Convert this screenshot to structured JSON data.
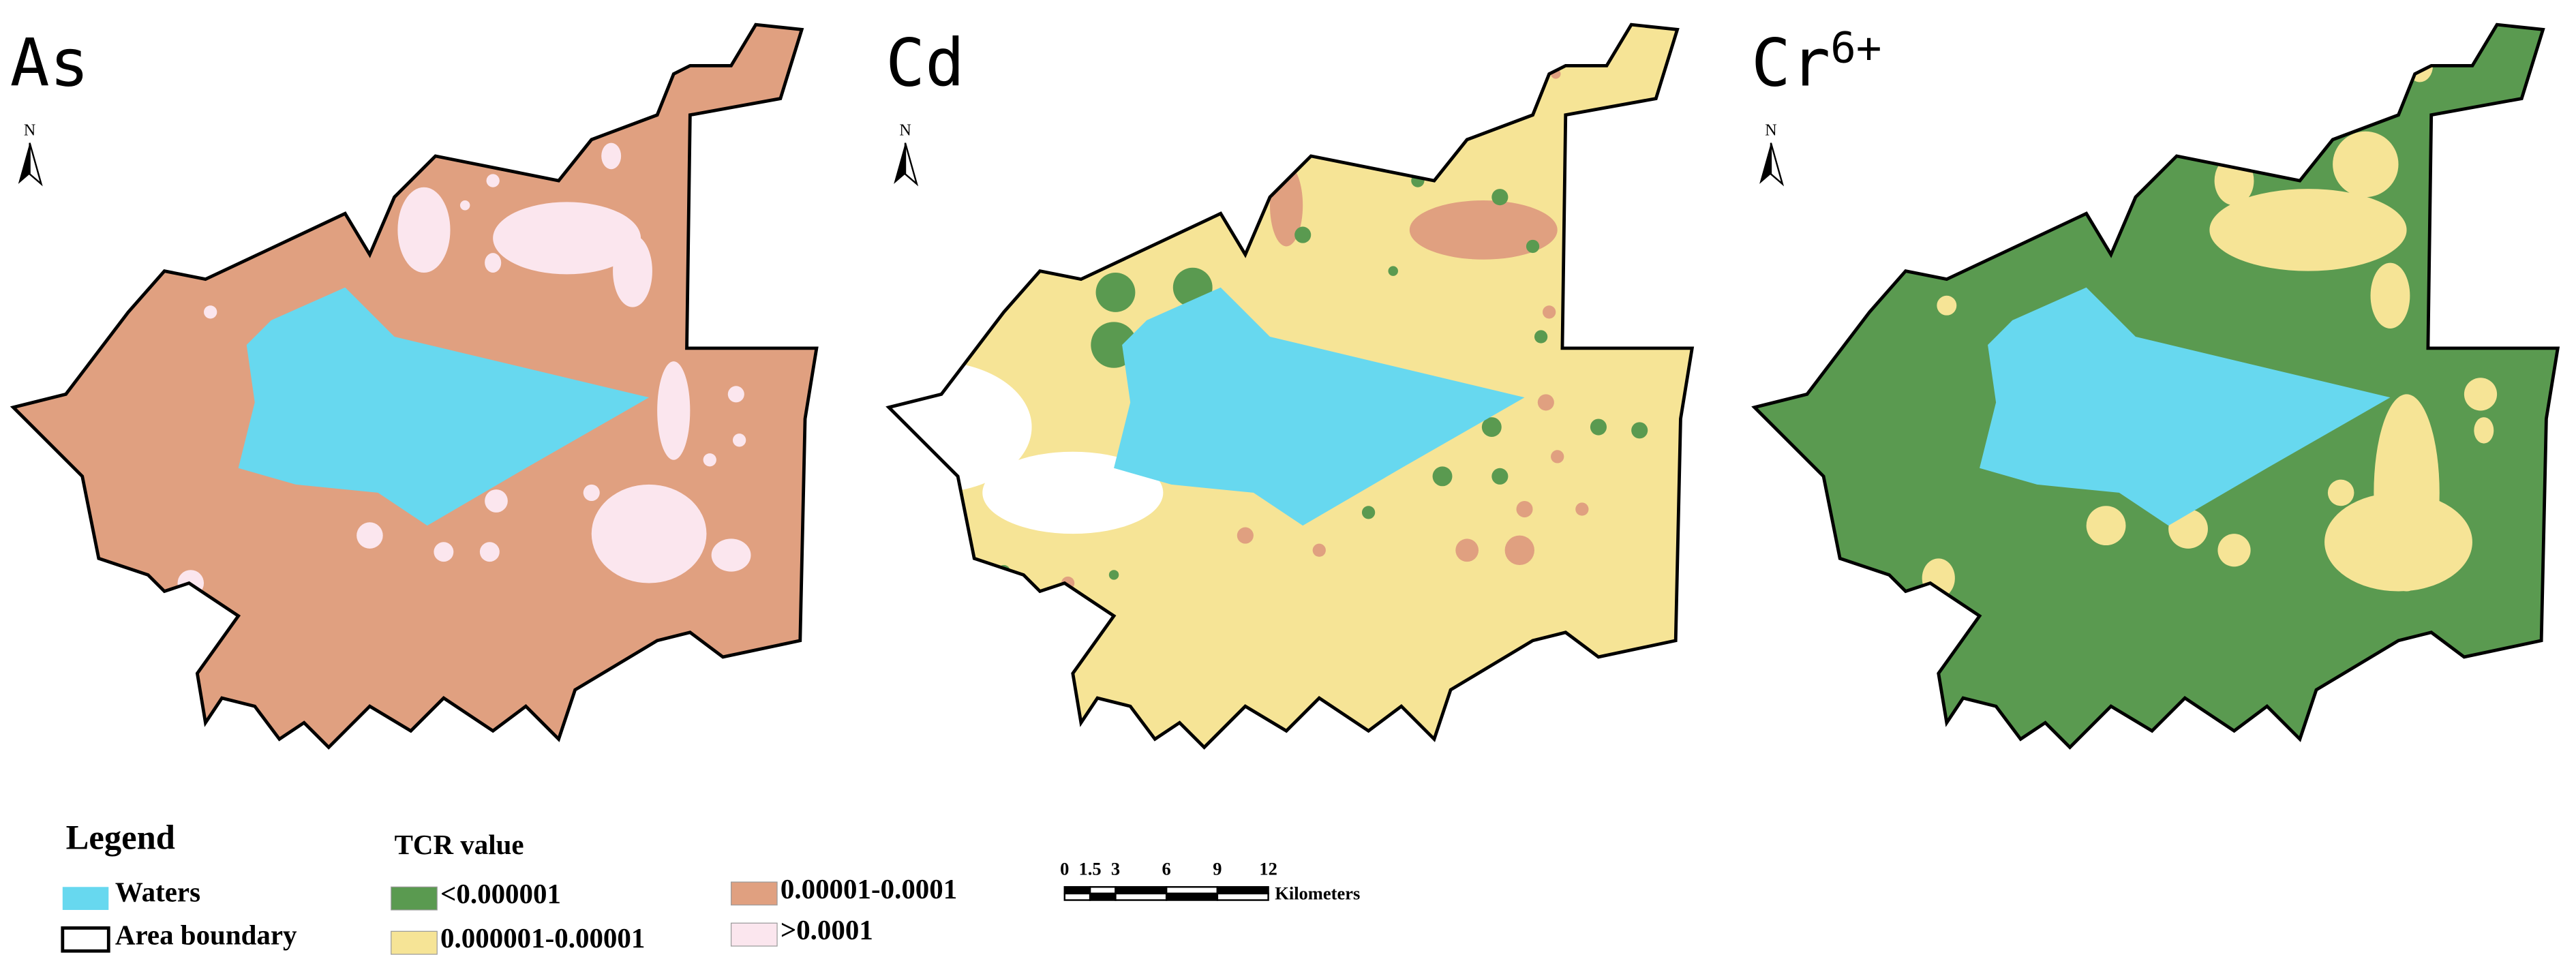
{
  "panels": [
    {
      "title": "As",
      "north": "N"
    },
    {
      "title": "Cd",
      "north": "N"
    },
    {
      "title": "Cr",
      "title_sup": "6+",
      "north": "N"
    }
  ],
  "legend": {
    "title": "Legend",
    "items": [
      {
        "label": "Waters",
        "color": "#67d8ef"
      },
      {
        "label": "Area boundary",
        "color": "#ffffff"
      }
    ]
  },
  "tcr": {
    "title": "TCR value",
    "classes": [
      {
        "label": "<0.000001",
        "color": "#5a9a50"
      },
      {
        "label": "0.000001-0.00001",
        "color": "#f6e496"
      },
      {
        "label": "0.00001-0.0001",
        "color": "#e0a080"
      },
      {
        "label": ">0.0001",
        "color": "#fbe6ee"
      }
    ]
  },
  "scale": {
    "ticks": [
      0,
      1.5,
      3,
      6,
      9,
      12
    ],
    "unit": "Kilometers"
  }
}
